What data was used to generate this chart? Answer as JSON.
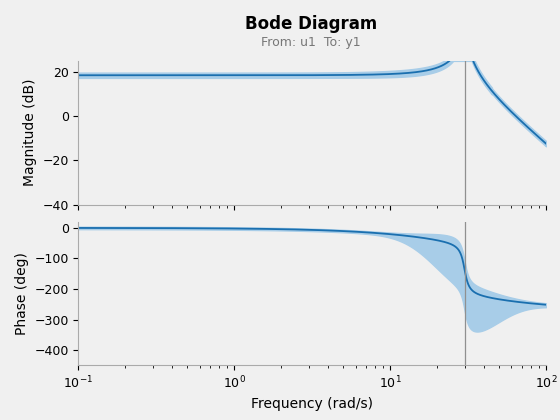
{
  "title": "Bode Diagram",
  "subtitle": "From: u1  To: y1",
  "xlabel": "Frequency (rad/s)",
  "ylabel_mag": "Magnitude (dB)",
  "ylabel_phase": "Phase (deg)",
  "freq_min": 0.1,
  "freq_max": 100,
  "mag_ylim": [
    -40,
    25
  ],
  "mag_yticks": [
    -40,
    -20,
    0,
    20
  ],
  "phase_ylim": [
    -450,
    20
  ],
  "phase_yticks": [
    -400,
    -300,
    -200,
    -100,
    0
  ],
  "vline_freq": 30,
  "natural_freq": 30,
  "damping": 0.05,
  "gain_dc_db": 18.5,
  "line_color": "#1a6faf",
  "band_color": "#a8cde8",
  "vline_color": "#909090",
  "title_fontsize": 12,
  "subtitle_fontsize": 9,
  "label_fontsize": 10,
  "tick_fontsize": 9,
  "background_color": "#f0f0f0"
}
